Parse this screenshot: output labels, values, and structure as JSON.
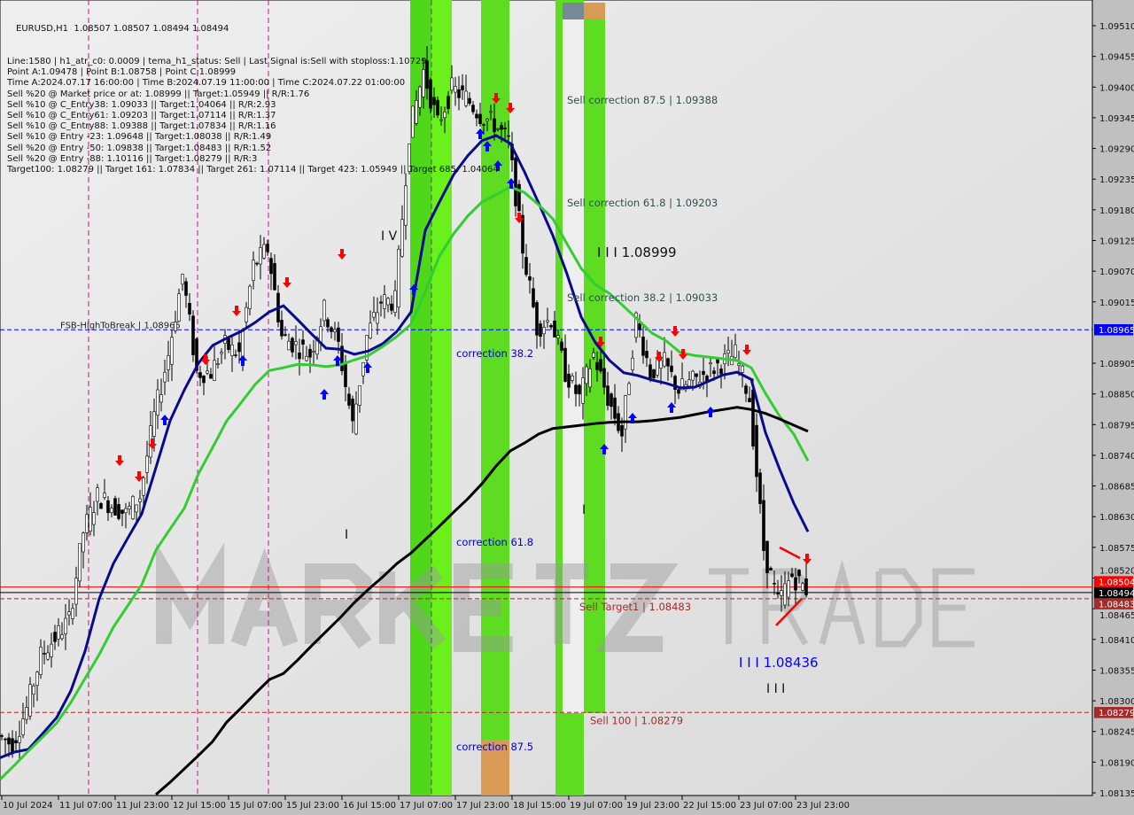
{
  "header": {
    "title": "EURUSD,H1  1.08507 1.08507 1.08494 1.08494",
    "lines": [
      "Line:1580 | h1_atr_c0: 0.0009 | tema_h1_status: Sell | Last Signal is:Sell with stoploss:1.10729",
      "Point A:1.09478 | Point B:1.08758 | Point C:1.08999",
      "Time A:2024.07.17 16:00:00 | Time B:2024.07.19 11:00:00 | Time C:2024.07.22 01:00:00",
      "Sell %20 @ Market price or at: 1.08999 || Target:1.05949 || R/R:1.76",
      "Sell %10 @ C_Entry38: 1.09033 || Target:1.04064 || R/R:2.93",
      "Sell %10 @ C_Entry61: 1.09203 || Target:1.07114 || R/R:1.37",
      "Sell %10 @ C_Entry88: 1.09388 || Target:1.07834 || R/R:1.16",
      "Sell %10 @ Entry -23: 1.09648 || Target:1.08038 || R/R:1.49",
      "Sell %20 @ Entry -50: 1.09838 || Target:1.08483 || R/R:1.52",
      "Sell %20 @ Entry -88: 1.10116 || Target:1.08279 || R/R:3",
      "Target100: 1.08279 || Target 161: 1.07834 || Target 261: 1.07114 || Target 423: 1.05949 || Target 685: 1.04064"
    ]
  },
  "chart_data": {
    "type": "candlestick",
    "symbol": "EURUSD",
    "timeframe": "H1",
    "ylim": [
      1.0812,
      1.09535
    ],
    "y_ticks": [
      "1.09510",
      "1.09455",
      "1.09400",
      "1.09345",
      "1.09290",
      "1.09235",
      "1.09180",
      "1.09125",
      "1.09070",
      "1.09015",
      "1.08905",
      "1.08850",
      "1.08795",
      "1.08740",
      "1.08685",
      "1.08630",
      "1.08575",
      "1.08520",
      "1.08465",
      "1.08410",
      "1.08355",
      "1.08300",
      "1.08245",
      "1.08190",
      "1.08135"
    ],
    "x_ticks": [
      "10 Jul 2024",
      "11 Jul 07:00",
      "11 Jul 23:00",
      "12 Jul 15:00",
      "15 Jul 07:00",
      "15 Jul 23:00",
      "16 Jul 15:00",
      "17 Jul 07:00",
      "17 Jul 23:00",
      "18 Jul 15:00",
      "19 Jul 07:00",
      "19 Jul 23:00",
      "22 Jul 15:00",
      "23 Jul 07:00",
      "23 Jul 23:00"
    ],
    "sample_step_bars": 4,
    "close": [
      1.08238,
      1.08222,
      1.08286,
      1.08381,
      1.08413,
      1.08445,
      1.08603,
      1.08667,
      1.08651,
      1.08635,
      1.08667,
      1.0881,
      1.08921,
      1.09064,
      1.08889,
      1.08889,
      1.08937,
      1.08921,
      1.0908,
      1.09111,
      1.08953,
      1.08937,
      1.08921,
      1.09,
      1.08937,
      1.08794,
      1.08953,
      1.09016,
      1.09016,
      1.09318,
      1.09429,
      1.09334,
      1.09397,
      1.09381,
      1.0935,
      1.09334,
      1.09302,
      1.09111,
      1.08969,
      1.08985,
      1.08889,
      1.08842,
      1.08921,
      1.08842,
      1.08778,
      1.08985,
      1.08889,
      1.08905,
      1.08857,
      1.08873,
      1.08889,
      1.08905,
      1.08921,
      1.08842,
      1.08572,
      1.08476,
      1.08524,
      1.085
    ],
    "series": [
      {
        "color": "#0a0a8c",
        "values": [
          1.08198,
          1.08208,
          1.08213,
          1.08241,
          1.0827,
          1.08318,
          1.08389,
          1.08483,
          1.08546,
          1.08591,
          1.08635,
          1.08718,
          1.08802,
          1.08857,
          1.08905,
          1.08937,
          1.0895,
          1.08962,
          1.08978,
          1.08997,
          1.09008,
          1.08983,
          1.08957,
          1.08932,
          1.0893,
          1.08921,
          1.08927,
          1.0894,
          1.08962,
          1.08997,
          1.09143,
          1.09194,
          1.09243,
          1.09277,
          1.09304,
          1.09313,
          1.09299,
          1.09248,
          1.09192,
          1.09134,
          1.09065,
          1.08988,
          1.08942,
          1.0891,
          1.08888,
          1.08883,
          1.08875,
          1.08869,
          1.08861,
          1.08862,
          1.08873,
          1.08884,
          1.08889,
          1.08876,
          1.08781,
          1.08715,
          1.08654,
          1.08603
        ]
      },
      {
        "color": "#33cc33",
        "values": [
          1.08159,
          1.08184,
          1.0821,
          1.08235,
          1.0826,
          1.08297,
          1.0834,
          1.08383,
          1.08432,
          1.0847,
          1.08508,
          1.0857,
          1.08608,
          1.08645,
          1.08707,
          1.08754,
          1.08802,
          1.08834,
          1.08867,
          1.08892,
          1.08897,
          1.08903,
          1.08902,
          1.08899,
          1.08902,
          1.08911,
          1.08919,
          1.08935,
          1.08953,
          1.08975,
          1.09034,
          1.09097,
          1.09137,
          1.09169,
          1.09194,
          1.09207,
          1.09221,
          1.09211,
          1.09189,
          1.09164,
          1.09119,
          1.09075,
          1.09046,
          1.0903,
          1.09007,
          1.08983,
          1.08959,
          1.08945,
          1.08924,
          1.08919,
          1.08916,
          1.08913,
          1.0891,
          1.08897,
          1.08851,
          1.0881,
          1.08778,
          1.0873
        ]
      },
      {
        "color": "#000000",
        "values": [
          null,
          null,
          null,
          null,
          null,
          null,
          null,
          null,
          null,
          null,
          null,
          1.08132,
          1.08154,
          1.08178,
          1.08202,
          1.08227,
          1.08262,
          1.08287,
          1.08313,
          1.08338,
          1.08349,
          1.08373,
          1.08399,
          1.08424,
          1.08449,
          1.08476,
          1.085,
          1.08522,
          1.08546,
          1.08565,
          1.08589,
          1.08613,
          1.08638,
          1.08662,
          1.08689,
          1.08721,
          1.08748,
          1.08762,
          1.08778,
          1.08788,
          1.08791,
          1.08794,
          1.08797,
          1.08799,
          1.088,
          1.088,
          1.08802,
          1.08805,
          1.08808,
          1.08813,
          1.08818,
          1.08822,
          1.08826,
          1.08822,
          1.08815,
          1.08805,
          1.08794,
          1.08783
        ]
      }
    ],
    "levels": [
      {
        "price": 1.08965,
        "label": "FSB-HighToBreak | 1.08965",
        "axis_label": "1.08965",
        "color": "#0000ff",
        "style": "dashed"
      },
      {
        "price": 1.08483,
        "label": "Sell Target1 | 1.08483",
        "axis_label": "1.08483",
        "color": "#a52a2a",
        "style": "dashed"
      },
      {
        "price": 1.08279,
        "label": "Sell 100 | 1.08279",
        "axis_label": "1.08279",
        "color": "#a52a2a",
        "style": "dashed"
      },
      {
        "price": 1.08494,
        "axis_label": "1.08494",
        "color": "#000000",
        "style": "solid"
      },
      {
        "price": 1.08504,
        "axis_label": "1.08504",
        "color": "#ff0000",
        "style": "solid"
      }
    ],
    "annotations": {
      "sell_corr_875": "Sell correction 87.5 | 1.09388",
      "sell_corr_618": "Sell correction 61.8 | 1.09203",
      "sell_corr_382": "Sell correction 38.2 | 1.09033",
      "wave_c": "I I I 1.08999",
      "wave_iv": "I V",
      "corr_382": "correction 38.2",
      "corr_618": "correction 61.8",
      "corr_875": "correction 87.5",
      "wave_target": "I I I 1.08436",
      "wave_iii": "I I I",
      "wave_i1": "I",
      "wave_i2": "I"
    },
    "watermark": "MARKETZ TRADE",
    "colors": {
      "zone_green": "#5ddc22",
      "zone_orange": "#d99a55",
      "zone_gray": "#778899",
      "background": "#e4e4e4"
    }
  }
}
